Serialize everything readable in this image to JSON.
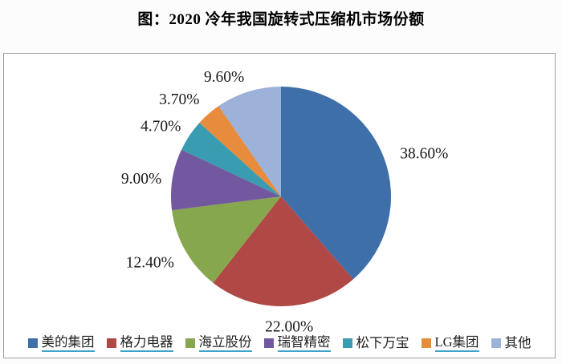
{
  "title": "图：2020 冷年我国旋转式压缩机市场份额",
  "chart_data": {
    "type": "pie",
    "title": "图：2020 冷年我国旋转式压缩机市场份额",
    "categories": [
      "美的集团",
      "格力电器",
      "海立股份",
      "瑞智精密",
      "松下万宝",
      "LG集团",
      "其他"
    ],
    "values": [
      38.6,
      22.0,
      12.4,
      9.0,
      4.7,
      3.7,
      9.6
    ],
    "labels": [
      "38.60%",
      "22.00%",
      "12.40%",
      "9.00%",
      "4.70%",
      "3.70%",
      "9.60%"
    ],
    "colors": [
      "#3e6fa9",
      "#b04845",
      "#86a74e",
      "#71589f",
      "#3a9cb0",
      "#e68c3c",
      "#9db2d9"
    ],
    "underlined_names": [
      true,
      true,
      true,
      true,
      false,
      true,
      false
    ],
    "start_angle": "12-o-clock",
    "direction": "clockwise",
    "legend_position": "bottom"
  },
  "colors": {
    "underline": "#3ba3c9",
    "box_border": "#9e9e9e",
    "label_text": "#1a1a1a"
  }
}
